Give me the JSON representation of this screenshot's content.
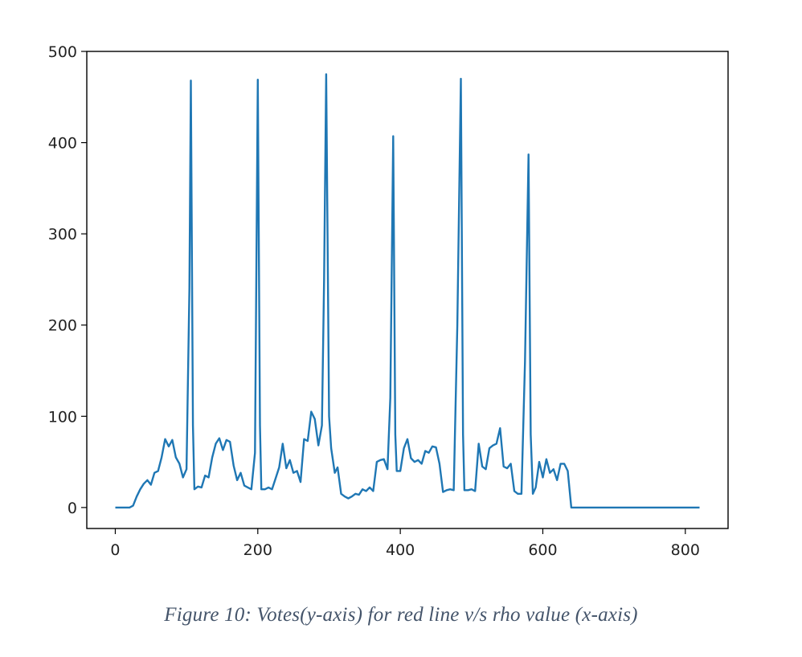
{
  "chart_data": {
    "type": "line",
    "title": "",
    "xlabel": "",
    "ylabel": "",
    "xlim": [
      -40,
      860
    ],
    "ylim": [
      -23,
      500
    ],
    "x_ticks": [
      0,
      200,
      400,
      600,
      800
    ],
    "y_ticks": [
      0,
      100,
      200,
      300,
      400,
      500
    ],
    "grid": false,
    "legend": "none",
    "series": [
      {
        "color": "#1f77b4",
        "points": [
          [
            0,
            0
          ],
          [
            10,
            0
          ],
          [
            20,
            0
          ],
          [
            25,
            2
          ],
          [
            30,
            12
          ],
          [
            35,
            20
          ],
          [
            40,
            26
          ],
          [
            45,
            30
          ],
          [
            50,
            25
          ],
          [
            55,
            38
          ],
          [
            60,
            40
          ],
          [
            65,
            55
          ],
          [
            70,
            75
          ],
          [
            75,
            67
          ],
          [
            80,
            74
          ],
          [
            85,
            55
          ],
          [
            90,
            48
          ],
          [
            95,
            33
          ],
          [
            100,
            42
          ],
          [
            104,
            240
          ],
          [
            106,
            468
          ],
          [
            109,
            90
          ],
          [
            111,
            20
          ],
          [
            116,
            23
          ],
          [
            121,
            22
          ],
          [
            126,
            35
          ],
          [
            131,
            33
          ],
          [
            136,
            55
          ],
          [
            141,
            70
          ],
          [
            146,
            76
          ],
          [
            151,
            63
          ],
          [
            156,
            74
          ],
          [
            161,
            72
          ],
          [
            166,
            46
          ],
          [
            171,
            30
          ],
          [
            176,
            38
          ],
          [
            181,
            24
          ],
          [
            186,
            22
          ],
          [
            191,
            20
          ],
          [
            196,
            60
          ],
          [
            200,
            469
          ],
          [
            203,
            90
          ],
          [
            205,
            20
          ],
          [
            210,
            20
          ],
          [
            215,
            22
          ],
          [
            220,
            20
          ],
          [
            225,
            32
          ],
          [
            230,
            44
          ],
          [
            235,
            70
          ],
          [
            240,
            43
          ],
          [
            245,
            52
          ],
          [
            250,
            38
          ],
          [
            255,
            40
          ],
          [
            260,
            28
          ],
          [
            265,
            75
          ],
          [
            270,
            73
          ],
          [
            275,
            105
          ],
          [
            280,
            97
          ],
          [
            285,
            68
          ],
          [
            290,
            90
          ],
          [
            293,
            250
          ],
          [
            296,
            475
          ],
          [
            300,
            100
          ],
          [
            303,
            65
          ],
          [
            308,
            38
          ],
          [
            312,
            44
          ],
          [
            317,
            15
          ],
          [
            322,
            12
          ],
          [
            327,
            10
          ],
          [
            332,
            12
          ],
          [
            337,
            15
          ],
          [
            342,
            14
          ],
          [
            347,
            20
          ],
          [
            352,
            18
          ],
          [
            357,
            22
          ],
          [
            362,
            18
          ],
          [
            367,
            50
          ],
          [
            372,
            52
          ],
          [
            377,
            53
          ],
          [
            382,
            42
          ],
          [
            386,
            120
          ],
          [
            390,
            407
          ],
          [
            393,
            80
          ],
          [
            395,
            40
          ],
          [
            400,
            40
          ],
          [
            405,
            65
          ],
          [
            410,
            75
          ],
          [
            415,
            54
          ],
          [
            420,
            50
          ],
          [
            425,
            52
          ],
          [
            430,
            48
          ],
          [
            435,
            62
          ],
          [
            440,
            60
          ],
          [
            445,
            67
          ],
          [
            450,
            66
          ],
          [
            455,
            48
          ],
          [
            460,
            17
          ],
          [
            465,
            19
          ],
          [
            470,
            20
          ],
          [
            475,
            19
          ],
          [
            480,
            200
          ],
          [
            485,
            470
          ],
          [
            488,
            80
          ],
          [
            490,
            19
          ],
          [
            495,
            19
          ],
          [
            500,
            20
          ],
          [
            505,
            18
          ],
          [
            510,
            70
          ],
          [
            515,
            45
          ],
          [
            520,
            42
          ],
          [
            525,
            65
          ],
          [
            530,
            68
          ],
          [
            535,
            70
          ],
          [
            540,
            87
          ],
          [
            545,
            45
          ],
          [
            550,
            43
          ],
          [
            555,
            48
          ],
          [
            560,
            18
          ],
          [
            565,
            15
          ],
          [
            570,
            15
          ],
          [
            575,
            160
          ],
          [
            580,
            387
          ],
          [
            583,
            80
          ],
          [
            586,
            15
          ],
          [
            590,
            22
          ],
          [
            595,
            50
          ],
          [
            600,
            33
          ],
          [
            605,
            53
          ],
          [
            610,
            38
          ],
          [
            615,
            42
          ],
          [
            620,
            30
          ],
          [
            625,
            48
          ],
          [
            630,
            48
          ],
          [
            635,
            40
          ],
          [
            640,
            0
          ],
          [
            700,
            0
          ],
          [
            800,
            0
          ],
          [
            820,
            0
          ]
        ]
      }
    ]
  },
  "caption": "Figure 10: Votes(y-axis) for red line v/s rho value (x-axis)"
}
